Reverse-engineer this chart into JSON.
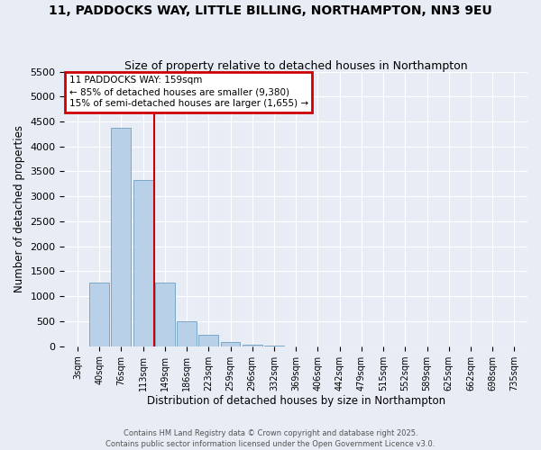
{
  "title": "11, PADDOCKS WAY, LITTLE BILLING, NORTHAMPTON, NN3 9EU",
  "subtitle": "Size of property relative to detached houses in Northampton",
  "xlabel": "Distribution of detached houses by size in Northampton",
  "ylabel": "Number of detached properties",
  "bar_labels": [
    "3sqm",
    "40sqm",
    "76sqm",
    "113sqm",
    "149sqm",
    "186sqm",
    "223sqm",
    "259sqm",
    "296sqm",
    "332sqm",
    "369sqm",
    "406sqm",
    "442sqm",
    "479sqm",
    "515sqm",
    "552sqm",
    "589sqm",
    "625sqm",
    "662sqm",
    "698sqm",
    "735sqm"
  ],
  "bar_values": [
    0,
    1270,
    4370,
    3320,
    1280,
    500,
    230,
    80,
    30,
    5,
    2,
    1,
    0,
    0,
    0,
    0,
    0,
    0,
    0,
    0,
    0
  ],
  "bar_color": "#b8d0e8",
  "bar_edge_color": "#7ba7c7",
  "vline_color": "#cc0000",
  "vline_pos": 3.5,
  "ylim": [
    0,
    5500
  ],
  "yticks": [
    0,
    500,
    1000,
    1500,
    2000,
    2500,
    3000,
    3500,
    4000,
    4500,
    5000,
    5500
  ],
  "annotation_title": "11 PADDOCKS WAY: 159sqm",
  "annotation_line2": "← 85% of detached houses are smaller (9,380)",
  "annotation_line3": "15% of semi-detached houses are larger (1,655) →",
  "annotation_box_color": "#ffffff",
  "annotation_box_edge_color": "#cc0000",
  "bg_color": "#e8ecf5",
  "grid_color": "#ffffff",
  "title_fontsize": 10,
  "subtitle_fontsize": 9,
  "footer1": "Contains HM Land Registry data © Crown copyright and database right 2025.",
  "footer2": "Contains public sector information licensed under the Open Government Licence v3.0."
}
